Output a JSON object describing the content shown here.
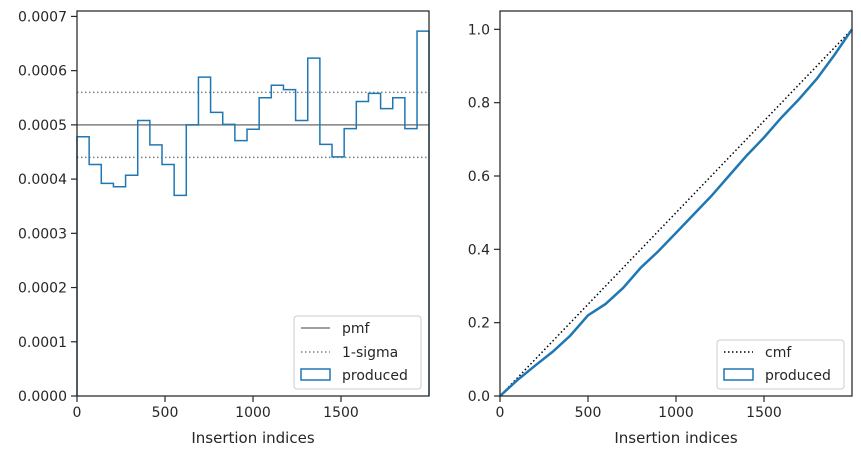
{
  "chart_data": [
    {
      "type": "line",
      "xlabel": "Insertion indices",
      "ylabel": "",
      "xlim": [
        0,
        2000
      ],
      "ylim": [
        0,
        0.00071
      ],
      "xticks": [
        0,
        500,
        1000,
        1500
      ],
      "xtick_labels": [
        "0",
        "500",
        "1000",
        "1500"
      ],
      "yticks": [
        0,
        0.0001,
        0.0002,
        0.0003,
        0.0004,
        0.0005,
        0.0006,
        0.0007
      ],
      "ytick_labels": [
        "0.0000",
        "0.0001",
        "0.0002",
        "0.0003",
        "0.0004",
        "0.0005",
        "0.0006",
        "0.0007"
      ],
      "pmf": 0.0005,
      "sigma_lines": [
        0.00044,
        0.00056
      ],
      "histogram": {
        "name": "produced",
        "color": "#1f77b4",
        "edges": [
          0,
          69,
          138,
          207,
          276,
          345,
          414,
          483,
          552,
          621,
          690,
          759,
          828,
          897,
          966,
          1035,
          1104,
          1173,
          1242,
          1311,
          1380,
          1449,
          1518,
          1587,
          1656,
          1725,
          1794,
          1863,
          1932,
          2000
        ],
        "values": [
          0.000478,
          0.000427,
          0.000392,
          0.000386,
          0.000407,
          0.000508,
          0.000463,
          0.000427,
          0.00037,
          0.0005,
          0.000588,
          0.000523,
          0.000501,
          0.000471,
          0.000492,
          0.00055,
          0.000573,
          0.000565,
          0.000508,
          0.000623,
          0.000464,
          0.000441,
          0.000493,
          0.000543,
          0.000558,
          0.00053,
          0.00055,
          0.000493,
          0.000673
        ]
      },
      "legend": {
        "placement": "lower right",
        "entries": [
          {
            "label": "pmf",
            "style": "solid",
            "color": "#808080"
          },
          {
            "label": "1-sigma",
            "style": "dotted",
            "color": "#808080"
          },
          {
            "label": "produced",
            "style": "patch",
            "color": "#1f77b4"
          }
        ]
      }
    },
    {
      "type": "line",
      "xlabel": "Insertion indices",
      "ylabel": "",
      "xlim": [
        0,
        2000
      ],
      "ylim": [
        0,
        1.05
      ],
      "xticks": [
        0,
        500,
        1000,
        1500
      ],
      "xtick_labels": [
        "0",
        "500",
        "1000",
        "1500"
      ],
      "yticks": [
        0,
        0.2,
        0.4,
        0.6,
        0.8,
        1.0
      ],
      "ytick_labels": [
        "0.0",
        "0.2",
        "0.4",
        "0.6",
        "0.8",
        "1.0"
      ],
      "cmf": {
        "name": "cmf",
        "color": "#000000",
        "x": [
          0,
          2000
        ],
        "y": [
          0,
          1.0
        ]
      },
      "produced": {
        "name": "produced",
        "color": "#1f77b4",
        "x": [
          0,
          100,
          200,
          300,
          400,
          500,
          600,
          700,
          800,
          900,
          1000,
          1100,
          1200,
          1300,
          1400,
          1500,
          1600,
          1700,
          1800,
          1900,
          2000
        ],
        "y": [
          0,
          0.044,
          0.083,
          0.121,
          0.165,
          0.22,
          0.251,
          0.295,
          0.35,
          0.395,
          0.445,
          0.495,
          0.545,
          0.6,
          0.655,
          0.705,
          0.76,
          0.81,
          0.865,
          0.93,
          1.0
        ]
      },
      "legend": {
        "placement": "lower right",
        "entries": [
          {
            "label": "cmf",
            "style": "dotted",
            "color": "#000000"
          },
          {
            "label": "produced",
            "style": "patch",
            "color": "#1f77b4"
          }
        ]
      }
    }
  ]
}
